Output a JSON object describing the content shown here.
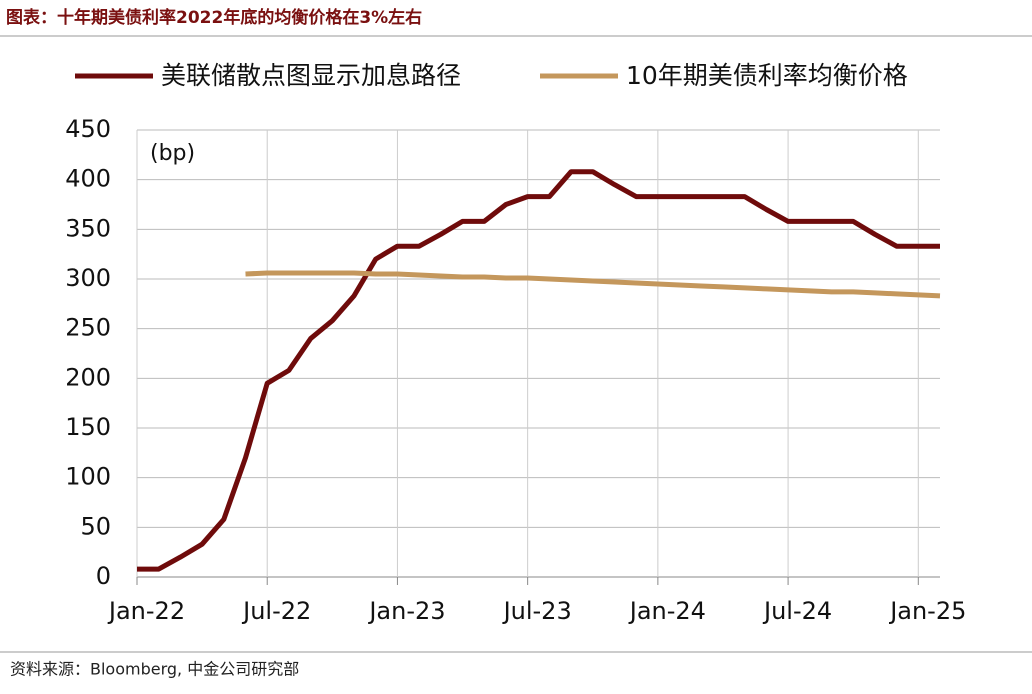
{
  "chart_data": {
    "type": "line",
    "title": "图表：十年期美债利率2022年底的均衡价格在3%左右",
    "y_unit": "(bp)",
    "source": "资料来源：Bloomberg, 中金公司研究部",
    "legend": "top",
    "grid": true,
    "categories": [
      "Jan-22",
      null,
      null,
      null,
      null,
      null,
      "Jul-22",
      null,
      null,
      null,
      null,
      null,
      "Jan-23",
      null,
      null,
      null,
      null,
      null,
      "Jul-23",
      null,
      null,
      null,
      null,
      null,
      "Jan-24",
      null,
      null,
      null,
      null,
      null,
      "Jul-24",
      null,
      null,
      null,
      null,
      null,
      "Jan-25",
      null
    ],
    "ylim": [
      0,
      450
    ],
    "yticks": [
      0,
      50,
      100,
      150,
      200,
      250,
      300,
      350,
      400,
      450
    ],
    "series": [
      {
        "name": "美联储散点图显示加息路径",
        "color": "#6f0b0b",
        "values": [
          8,
          8,
          20,
          33,
          58,
          120,
          195,
          208,
          240,
          258,
          283,
          320,
          333,
          333,
          345,
          358,
          358,
          375,
          383,
          383,
          408,
          408,
          395,
          383,
          383,
          383,
          383,
          383,
          383,
          370,
          358,
          358,
          358,
          358,
          345,
          333,
          333,
          333
        ]
      },
      {
        "name": "10年期美债利率均衡价格",
        "color": "#c4975c",
        "values": [
          null,
          null,
          null,
          null,
          null,
          305,
          306,
          306,
          306,
          306,
          306,
          305,
          305,
          304,
          303,
          302,
          302,
          301,
          301,
          300,
          299,
          298,
          297,
          296,
          295,
          294,
          293,
          292,
          291,
          290,
          289,
          288,
          287,
          287,
          286,
          285,
          284,
          283
        ]
      }
    ]
  }
}
